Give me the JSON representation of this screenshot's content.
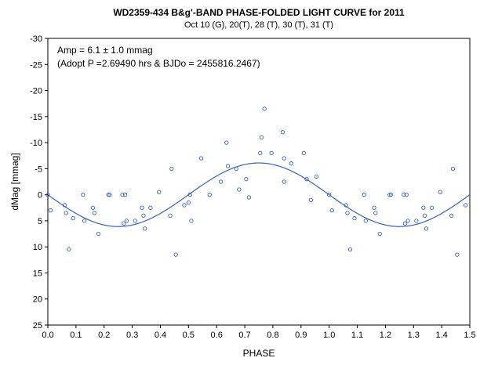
{
  "chart_data": {
    "type": "scatter",
    "title": "WD2359-434  B&g'-BAND  PHASE-FOLDED  LIGHT CURVE  for 2011",
    "subtitle": "Oct 10 (G), 20(T), 28 (T), 30 (T), 31 (T)",
    "annotation_line1": "Amp = 6.1 ± 1.0 mmag",
    "annotation_line2": "(Adopt P =2.69490 hrs & BJDo = 2455816.2467)",
    "xlabel": "PHASE",
    "ylabel": "dMag [mmag]",
    "xlim": [
      0.0,
      1.5
    ],
    "ylim": [
      25,
      -30
    ],
    "y_inverted": true,
    "grid": false,
    "x_ticks": [
      "0.0",
      "0.1",
      "0.2",
      "0.3",
      "0.4",
      "0.5",
      "0.6",
      "0.7",
      "0.8",
      "0.9",
      "1.0",
      "1.1",
      "1.2",
      "1.3",
      "1.4",
      "1.5"
    ],
    "y_ticks": [
      "-30",
      "-25",
      "-20",
      "-15",
      "-10",
      "-5",
      "0",
      "5",
      "10",
      "15",
      "20",
      "25"
    ],
    "fit": {
      "type": "sinusoid",
      "amplitude": 6.1,
      "period_phase": 1.0,
      "maximum_at_phase": 0.75
    },
    "points": [
      {
        "x": 0.0,
        "y": 0
      },
      {
        "x": 0.01,
        "y": 3
      },
      {
        "x": 0.06,
        "y": 2
      },
      {
        "x": 0.065,
        "y": 3.5
      },
      {
        "x": 0.075,
        "y": 10.5
      },
      {
        "x": 0.09,
        "y": 4.5
      },
      {
        "x": 0.125,
        "y": 0
      },
      {
        "x": 0.13,
        "y": 5
      },
      {
        "x": 0.16,
        "y": 2.5
      },
      {
        "x": 0.165,
        "y": 3.5
      },
      {
        "x": 0.18,
        "y": 7.5
      },
      {
        "x": 0.215,
        "y": 0
      },
      {
        "x": 0.22,
        "y": 0
      },
      {
        "x": 0.265,
        "y": 0
      },
      {
        "x": 0.275,
        "y": 0
      },
      {
        "x": 0.27,
        "y": 5.5
      },
      {
        "x": 0.28,
        "y": 5
      },
      {
        "x": 0.31,
        "y": 5
      },
      {
        "x": 0.335,
        "y": 2.5
      },
      {
        "x": 0.34,
        "y": 4
      },
      {
        "x": 0.345,
        "y": 6.5
      },
      {
        "x": 0.365,
        "y": 2.5
      },
      {
        "x": 0.395,
        "y": -0.5
      },
      {
        "x": 0.435,
        "y": 4
      },
      {
        "x": 0.44,
        "y": -5
      },
      {
        "x": 0.455,
        "y": 11.5
      },
      {
        "x": 0.485,
        "y": 2
      },
      {
        "x": 0.5,
        "y": 1.5
      },
      {
        "x": 0.505,
        "y": 0
      },
      {
        "x": 0.51,
        "y": 5
      },
      {
        "x": 0.545,
        "y": -7
      },
      {
        "x": 0.575,
        "y": 0
      },
      {
        "x": 0.615,
        "y": -2.5
      },
      {
        "x": 0.635,
        "y": -10
      },
      {
        "x": 0.64,
        "y": -5.5
      },
      {
        "x": 0.67,
        "y": -5
      },
      {
        "x": 0.68,
        "y": -1
      },
      {
        "x": 0.705,
        "y": -3
      },
      {
        "x": 0.715,
        "y": 0.5
      },
      {
        "x": 0.755,
        "y": -8
      },
      {
        "x": 0.76,
        "y": -11
      },
      {
        "x": 0.77,
        "y": -16.5
      },
      {
        "x": 0.795,
        "y": -8
      },
      {
        "x": 0.835,
        "y": -12
      },
      {
        "x": 0.84,
        "y": -7
      },
      {
        "x": 0.84,
        "y": -2.5
      },
      {
        "x": 0.865,
        "y": -6
      },
      {
        "x": 0.91,
        "y": -8
      },
      {
        "x": 0.92,
        "y": -3
      },
      {
        "x": 0.935,
        "y": 1
      },
      {
        "x": 0.955,
        "y": -3.5
      },
      {
        "x": 1.0,
        "y": 0
      },
      {
        "x": 1.01,
        "y": 3
      },
      {
        "x": 1.06,
        "y": 2
      },
      {
        "x": 1.065,
        "y": 3.5
      },
      {
        "x": 1.075,
        "y": 10.5
      },
      {
        "x": 1.09,
        "y": 4.5
      },
      {
        "x": 1.125,
        "y": 0
      },
      {
        "x": 1.13,
        "y": 5
      },
      {
        "x": 1.16,
        "y": 2.5
      },
      {
        "x": 1.165,
        "y": 3.5
      },
      {
        "x": 1.18,
        "y": 7.5
      },
      {
        "x": 1.215,
        "y": 0
      },
      {
        "x": 1.22,
        "y": 0
      },
      {
        "x": 1.265,
        "y": 0
      },
      {
        "x": 1.275,
        "y": 0
      },
      {
        "x": 1.27,
        "y": 5.5
      },
      {
        "x": 1.28,
        "y": 5
      },
      {
        "x": 1.31,
        "y": 5
      },
      {
        "x": 1.335,
        "y": 2.5
      },
      {
        "x": 1.34,
        "y": 4
      },
      {
        "x": 1.345,
        "y": 6.5
      },
      {
        "x": 1.365,
        "y": 2.5
      },
      {
        "x": 1.395,
        "y": -0.5
      },
      {
        "x": 1.435,
        "y": 4
      },
      {
        "x": 1.44,
        "y": -5
      },
      {
        "x": 1.455,
        "y": 11.5
      },
      {
        "x": 1.485,
        "y": 2
      }
    ],
    "colors": {
      "series": "#3a63b8",
      "axis": "#000000",
      "background": "#ffffff"
    }
  }
}
